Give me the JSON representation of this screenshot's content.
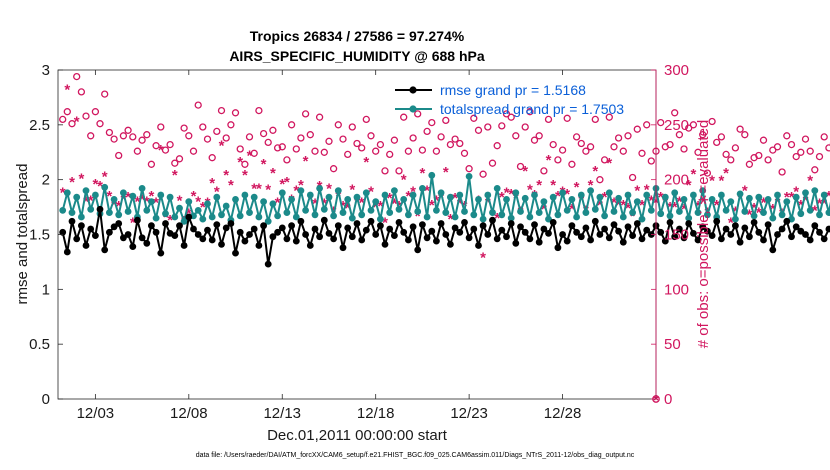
{
  "chart_data": {
    "type": "line",
    "title": "Tropics 26834 / 27586 = 97.274%",
    "subtitle": "AIRS_SPECIFIC_HUMIDITY @ 688 hPa",
    "xlabel": "Dec.01,2011 00:00:00 start",
    "ylabel": "rmse and totalspread",
    "y2label": "# of obs: o=possible; ∗=evaluated",
    "xlim": [
      0,
      32
    ],
    "ylim": [
      0,
      3
    ],
    "y2lim": [
      0,
      300
    ],
    "xticks": [
      {
        "value": 2,
        "label": "12/03"
      },
      {
        "value": 7,
        "label": "12/08"
      },
      {
        "value": 12,
        "label": "12/13"
      },
      {
        "value": 17,
        "label": "12/18"
      },
      {
        "value": 22,
        "label": "12/23"
      },
      {
        "value": 27,
        "label": "12/28"
      }
    ],
    "yticks": [
      "0",
      "0.5",
      "1",
      "1.5",
      "2",
      "2.5",
      "3"
    ],
    "y2ticks": [
      "0",
      "50",
      "100",
      "150",
      "200",
      "250",
      "300"
    ],
    "x_step": 0.25,
    "series": [
      {
        "name": "rmse",
        "legend": "rmse grand pr = 1.5168",
        "color": "#000000",
        "marker": "dot",
        "values": [
          1.52,
          1.34,
          1.62,
          1.46,
          1.58,
          1.4,
          1.55,
          1.49,
          1.73,
          1.36,
          1.52,
          1.57,
          1.6,
          1.47,
          1.5,
          1.39,
          1.63,
          1.47,
          1.42,
          1.58,
          1.52,
          1.33,
          1.6,
          1.51,
          1.49,
          1.58,
          1.4,
          1.66,
          1.55,
          1.5,
          1.46,
          1.54,
          1.45,
          1.59,
          1.41,
          1.56,
          1.6,
          1.33,
          1.52,
          1.44,
          1.5,
          1.55,
          1.4,
          1.58,
          1.23,
          1.48,
          1.52,
          1.56,
          1.46,
          1.58,
          1.44,
          1.62,
          1.5,
          1.4,
          1.55,
          1.48,
          1.63,
          1.51,
          1.46,
          1.58,
          1.38,
          1.56,
          1.48,
          1.6,
          1.45,
          1.54,
          1.62,
          1.5,
          1.58,
          1.41,
          1.55,
          1.49,
          1.61,
          1.52,
          1.45,
          1.57,
          1.36,
          1.59,
          1.47,
          1.53,
          1.44,
          1.6,
          1.5,
          1.41,
          1.56,
          1.52,
          1.61,
          1.47,
          1.55,
          1.4,
          1.58,
          1.5,
          1.63,
          1.46,
          1.54,
          1.48,
          1.6,
          1.42,
          1.57,
          1.52,
          1.46,
          1.59,
          1.43,
          1.55,
          1.51,
          1.61,
          1.38,
          1.5,
          1.44,
          1.58,
          1.52,
          1.48,
          1.56,
          1.45,
          1.62,
          1.5,
          1.55,
          1.47,
          1.59,
          1.53,
          1.43,
          1.57,
          1.49,
          1.6,
          1.46,
          1.54,
          1.5,
          1.58,
          1.52,
          1.44,
          1.61,
          1.48,
          1.55,
          1.47,
          1.6,
          1.51,
          1.45,
          1.57,
          1.53,
          1.49,
          1.62,
          1.46,
          1.55,
          1.5,
          1.58,
          1.43,
          1.56,
          1.48,
          1.61,
          1.52,
          1.45,
          1.59,
          1.36,
          1.5,
          1.55,
          1.62,
          1.48,
          1.57,
          1.53,
          1.5,
          1.45,
          1.58,
          1.52,
          1.46,
          1.55,
          1.5,
          1.27,
          1.52,
          1.6,
          1.48,
          1.54,
          1.62,
          1.57,
          1.46,
          1.61,
          1.51,
          1.53,
          1.52
        ]
      },
      {
        "name": "totalspread",
        "legend": "totalspread grand pr = 1.7503",
        "color": "#1b8a8a",
        "marker": "dot",
        "values": [
          1.72,
          1.88,
          1.7,
          1.84,
          1.66,
          1.9,
          1.73,
          1.86,
          1.69,
          1.93,
          1.7,
          1.82,
          1.68,
          1.88,
          1.71,
          1.85,
          1.66,
          1.92,
          1.72,
          1.8,
          1.65,
          1.86,
          1.69,
          1.84,
          1.66,
          1.74,
          1.62,
          1.8,
          1.67,
          1.72,
          1.64,
          1.78,
          1.66,
          1.84,
          1.68,
          1.76,
          1.63,
          1.82,
          1.67,
          1.86,
          1.7,
          1.84,
          1.66,
          1.8,
          1.62,
          1.78,
          1.67,
          1.88,
          1.7,
          1.82,
          1.66,
          1.9,
          1.72,
          1.86,
          1.68,
          1.92,
          1.73,
          1.84,
          1.67,
          1.9,
          1.7,
          1.82,
          1.65,
          1.84,
          1.68,
          1.88,
          1.72,
          1.8,
          1.64,
          1.86,
          1.7,
          1.9,
          1.73,
          1.82,
          1.68,
          1.86,
          1.71,
          1.92,
          1.66,
          2.04,
          1.72,
          1.88,
          1.7,
          1.84,
          1.66,
          1.86,
          1.71,
          2.03,
          1.68,
          1.82,
          1.64,
          1.86,
          1.7,
          1.92,
          1.68,
          1.82,
          1.65,
          1.88,
          1.71,
          1.83,
          1.66,
          1.86,
          1.7,
          1.8,
          1.64,
          1.84,
          1.68,
          1.88,
          1.72,
          1.82,
          1.66,
          1.86,
          1.7,
          1.9,
          1.73,
          1.84,
          1.67,
          1.88,
          1.71,
          1.83,
          1.66,
          1.86,
          1.7,
          1.8,
          1.64,
          1.86,
          1.72,
          1.92,
          1.69,
          1.84,
          1.67,
          1.88,
          1.71,
          1.82,
          1.65,
          1.86,
          1.7,
          1.9,
          1.68,
          1.82,
          1.66,
          1.86,
          1.72,
          1.8,
          1.64,
          1.87,
          1.71,
          1.83,
          1.67,
          1.84,
          1.7,
          1.82,
          1.65,
          1.86,
          1.68,
          1.8,
          1.64,
          1.84,
          1.69,
          1.88,
          1.72,
          1.9,
          1.68,
          1.86,
          1.7,
          1.92,
          1.66,
          1.84,
          1.7,
          1.8,
          1.67,
          1.86,
          1.72,
          1.96,
          1.7,
          1.82,
          1.84
        ]
      }
    ],
    "obs_series": [
      {
        "name": "possible",
        "marker": "o",
        "color": "#d1175f",
        "values": [
          255,
          262,
          251,
          294,
          280,
          258,
          240,
          262,
          251,
          278,
          243,
          237,
          222,
          240,
          245,
          239,
          226,
          236,
          241,
          214,
          231,
          248,
          227,
          232,
          215,
          219,
          247,
          240,
          226,
          268,
          248,
          237,
          220,
          244,
          263,
          238,
          250,
          261,
          228,
          214,
          239,
          224,
          263,
          242,
          234,
          245,
          229,
          230,
          218,
          250,
          228,
          238,
          260,
          241,
          226,
          257,
          225,
          235,
          210,
          250,
          237,
          223,
          248,
          233,
          229,
          255,
          240,
          226,
          232,
          208,
          223,
          236,
          208,
          257,
          226,
          238,
          260,
          227,
          244,
          252,
          226,
          239,
          254,
          232,
          237,
          233,
          224,
          210,
          256,
          245,
          205,
          248,
          215,
          231,
          249,
          260,
          257,
          240,
          212,
          248,
          262,
          236,
          240,
          208,
          255,
          232,
          218,
          227,
          256,
          214,
          239,
          233,
          226,
          230,
          255,
          200,
          218,
          257,
          230,
          238,
          226,
          240,
          202,
          246,
          224,
          250,
          217,
          226,
          252,
          230,
          232,
          261,
          241,
          228,
          247,
          250,
          225,
          241,
          206,
          253,
          234,
          239,
          223,
          218,
          229,
          246,
          241,
          214,
          220,
          222,
          236,
          218,
          227,
          230,
          207,
          240,
          232,
          221,
          225,
          237,
          226,
          209,
          221,
          239,
          229,
          233,
          249,
          245,
          222,
          223,
          230,
          247
        ]
      },
      {
        "name": "evaluated",
        "marker": "asterisk",
        "color": "#d1175f",
        "values": [
          189,
          283,
          199,
          254,
          202,
          181,
          182,
          197,
          195,
          204,
          186,
          178,
          177,
          183,
          185,
          162,
          181,
          183,
          181,
          186,
          180,
          228,
          167,
          164,
          205,
          182,
          163,
          170,
          186,
          181,
          176,
          180,
          198,
          190,
          232,
          205,
          196,
          180,
          217,
          205,
          223,
          193,
          193,
          215,
          192,
          207,
          180,
          197,
          199,
          183,
          191,
          196,
          218,
          184,
          179,
          195,
          179,
          193,
          172,
          186,
          177,
          175,
          192,
          180,
          180,
          217,
          190,
          176,
          177,
          162,
          184,
          179,
          177,
          201,
          186,
          190,
          168,
          207,
          191,
          178,
          182,
          184,
          208,
          165,
          184,
          179,
          177,
          147,
          167,
          182,
          130,
          180,
          170,
          166,
          185,
          189,
          188,
          184,
          172,
          209,
          192,
          187,
          196,
          174,
          219,
          196,
          186,
          190,
          188,
          174,
          194,
          182,
          173,
          196,
          209,
          178,
          185,
          216,
          180,
          178,
          178,
          175,
          168,
          191,
          178,
          192,
          182,
          180,
          185,
          180,
          176,
          176,
          181,
          174,
          196,
          206,
          177,
          189,
          171,
          200,
          178,
          200,
          207,
          162,
          172,
          185,
          191,
          169,
          175,
          171,
          180,
          179,
          174,
          180,
          170,
          185,
          185,
          190,
          178,
          182,
          200,
          173,
          179,
          179,
          186,
          189,
          190,
          198,
          185,
          175,
          182,
          180
        ]
      }
    ],
    "last_obs_value": 0,
    "footnote": "data file: /Users/raeder/DAI/ATM_forcXX/CAM6_setup/f.e21.FHIST_BGC.f09_025.CAM6assim.011/Diags_NTrS_2011-12/obs_diag_output.nc"
  }
}
